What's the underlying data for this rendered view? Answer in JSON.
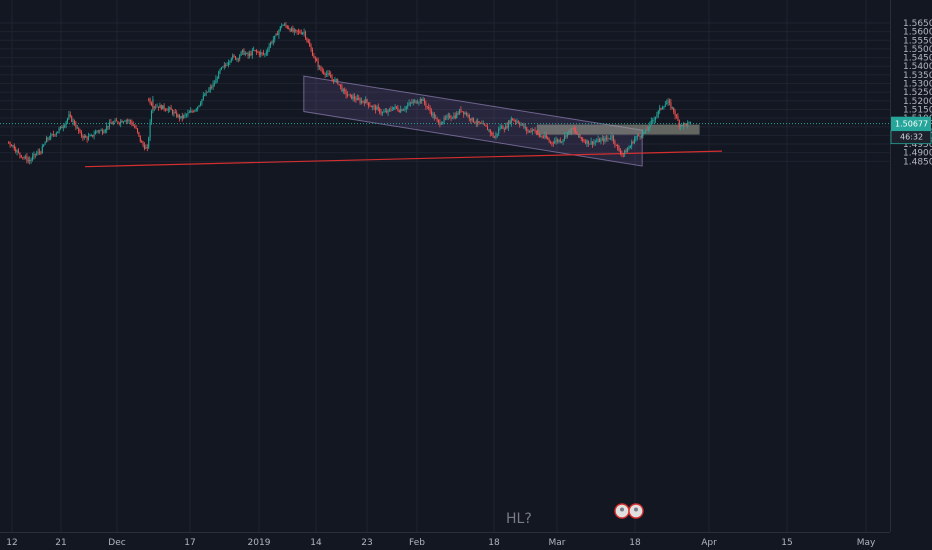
{
  "chart_data": {
    "type": "candlestick",
    "y_axis": {
      "ticks": [
        "1.56500",
        "1.56000",
        "1.55500",
        "1.55000",
        "1.54500",
        "1.54000",
        "1.53500",
        "1.53000",
        "1.52500",
        "1.52000",
        "1.51500",
        "1.51000",
        "1.50500",
        "1.50000",
        "1.49500",
        "1.49000",
        "1.48500"
      ],
      "range": [
        1.4824,
        1.5689
      ],
      "grid": true
    },
    "x_axis": {
      "ticks": [
        "12",
        "21",
        "Dec",
        "17",
        "2019",
        "14",
        "23",
        "Feb",
        "18",
        "Mar",
        "18",
        "Apr",
        "15",
        "May"
      ]
    },
    "price": {
      "last": "1.50677",
      "countdown": "46:32",
      "last_value": 1.50677
    },
    "annotations": [
      {
        "type": "text",
        "text": "HL?"
      },
      {
        "type": "descending-channel",
        "from_date": "2019-01-01",
        "to_date": "2019-03-01"
      },
      {
        "type": "support-zone",
        "from_date": "2019-02-10",
        "to_date": "2019-03-10",
        "top": 1.5045,
        "bottom": 1.5035
      },
      {
        "type": "trendline",
        "color": "#d32f2f"
      }
    ],
    "series": [
      {
        "style": "candles",
        "up_color": "#26a69a",
        "down_color": "#ef5350",
        "anchors": [
          {
            "x": "Nov 5",
            "close": 1.4965
          },
          {
            "x": "Nov 9",
            "close": 1.4855
          },
          {
            "x": "Nov 16",
            "close": 1.51
          },
          {
            "x": "Nov 19",
            "close": 1.4985
          },
          {
            "x": "Nov 26",
            "close": 1.511
          },
          {
            "x": "Nov 30",
            "close": 1.492
          },
          {
            "x": "Dec 4",
            "close": 1.52
          },
          {
            "x": "Dec 11",
            "close": 1.51
          },
          {
            "x": "Dec 14",
            "close": 1.522
          },
          {
            "x": "Dec 19",
            "close": 1.546
          },
          {
            "x": "Dec 25",
            "close": 1.548
          },
          {
            "x": "Dec 28",
            "close": 1.563
          },
          {
            "x": "Jan 1",
            "close": 1.56
          },
          {
            "x": "Jan 4",
            "close": 1.538
          },
          {
            "x": "Jan 9",
            "close": 1.523
          },
          {
            "x": "Jan 15",
            "close": 1.514
          },
          {
            "x": "Jan 22",
            "close": 1.519
          },
          {
            "x": "Jan 25",
            "close": 1.506
          },
          {
            "x": "Jan 29",
            "close": 1.5155
          },
          {
            "x": "Feb 4",
            "close": 1.4995
          },
          {
            "x": "Feb 7",
            "close": 1.51
          },
          {
            "x": "Feb 14",
            "close": 1.4955
          },
          {
            "x": "Feb 18",
            "close": 1.502
          },
          {
            "x": "Feb 22",
            "close": 1.4955
          },
          {
            "x": "Feb 25",
            "close": 1.498
          },
          {
            "x": "Feb 27",
            "close": 1.488
          },
          {
            "x": "Mar 1",
            "close": 1.5
          },
          {
            "x": "Mar 3",
            "close": 1.504
          },
          {
            "x": "Mar 5",
            "close": 1.511
          },
          {
            "x": "Mar 7",
            "close": 1.5205
          },
          {
            "x": "Mar 9",
            "close": 1.508
          },
          {
            "x": "Mar 11",
            "close": 1.5068
          }
        ]
      }
    ]
  }
}
